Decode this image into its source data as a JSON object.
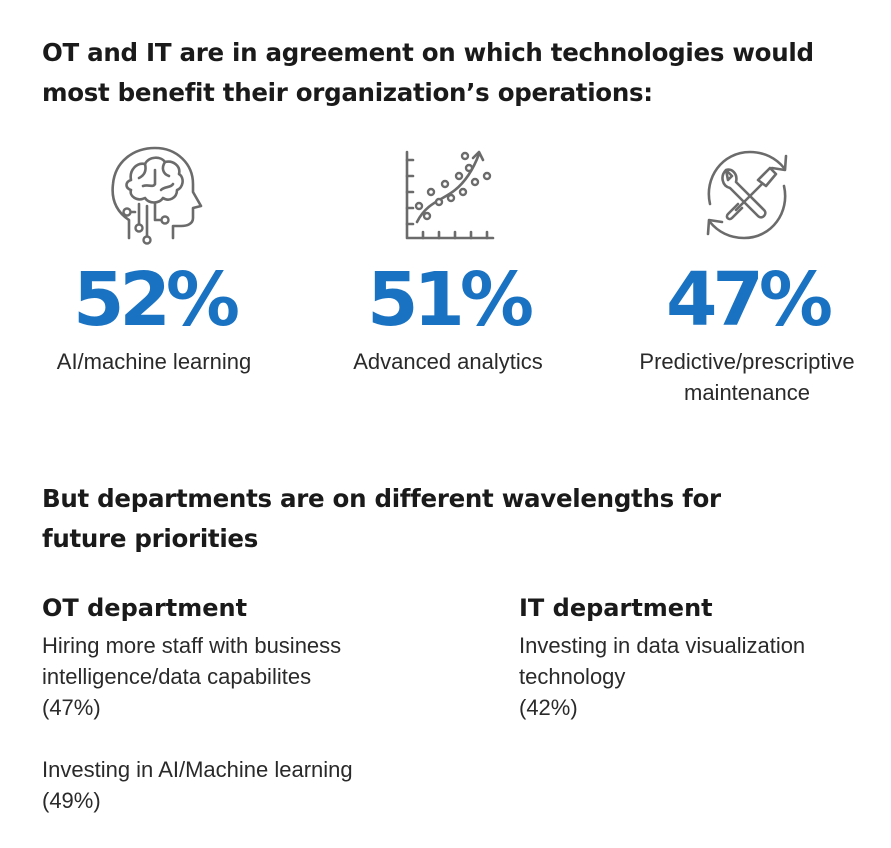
{
  "headline": "OT and IT are in agreement on which technologies would most benefit their organization’s operations:",
  "stats": [
    {
      "value": "52%",
      "label": "AI/machine learning",
      "icon": "brain-head-icon"
    },
    {
      "value": "51%",
      "label": "Advanced analytics",
      "icon": "scatter-chart-icon"
    },
    {
      "value": "47%",
      "label": "Predictive/prescriptive maintenance",
      "icon": "wrench-screwdriver-cycle-icon"
    }
  ],
  "subheadline": "But departments are on different wavelengths for future priorities",
  "departments": {
    "ot": {
      "title": "OT department",
      "items": [
        {
          "text": "Hiring more staff with business intelligence/data capabilites",
          "pct": "(47%)"
        },
        {
          "text": "Investing in AI/Machine learning",
          "pct": "(49%)"
        }
      ]
    },
    "it": {
      "title": "IT department",
      "items": [
        {
          "text": "Investing in data visualization technology",
          "pct": "(42%)"
        }
      ]
    }
  },
  "colors": {
    "accent": "#1a73c2",
    "text": "#1a1a1a",
    "icon": "#6b6b6b"
  }
}
